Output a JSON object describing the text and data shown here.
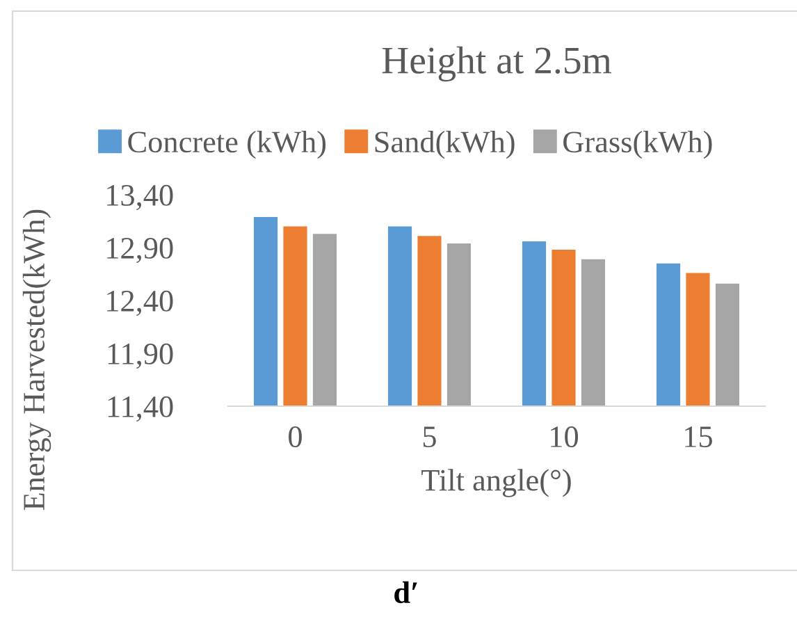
{
  "chart_data": {
    "type": "bar",
    "title": "Height at 2.5m",
    "xlabel": "Tilt angle(°)",
    "ylabel": "Energy Harvested(kWh)",
    "categories": [
      "0",
      "5",
      "10",
      "15"
    ],
    "series": [
      {
        "name": "Concrete (kWh)",
        "color": "#5b9bd5",
        "values": [
          13.19,
          13.1,
          12.96,
          12.75
        ]
      },
      {
        "name": "Sand(kWh)",
        "color": "#ed7d31",
        "values": [
          13.1,
          13.01,
          12.88,
          12.66
        ]
      },
      {
        "name": "Grass(kWh)",
        "color": "#a5a5a5",
        "values": [
          13.03,
          12.94,
          12.79,
          12.56
        ]
      }
    ],
    "ylim": [
      11.4,
      13.4
    ],
    "yticks": [
      {
        "value": 11.4,
        "label": "11,40"
      },
      {
        "value": 11.9,
        "label": "11,90"
      },
      {
        "value": 12.4,
        "label": "12,40"
      },
      {
        "value": 12.9,
        "label": "12,90"
      },
      {
        "value": 13.4,
        "label": "13,40"
      }
    ],
    "grid": false,
    "legend": "top",
    "annotations": [
      "d′"
    ]
  }
}
